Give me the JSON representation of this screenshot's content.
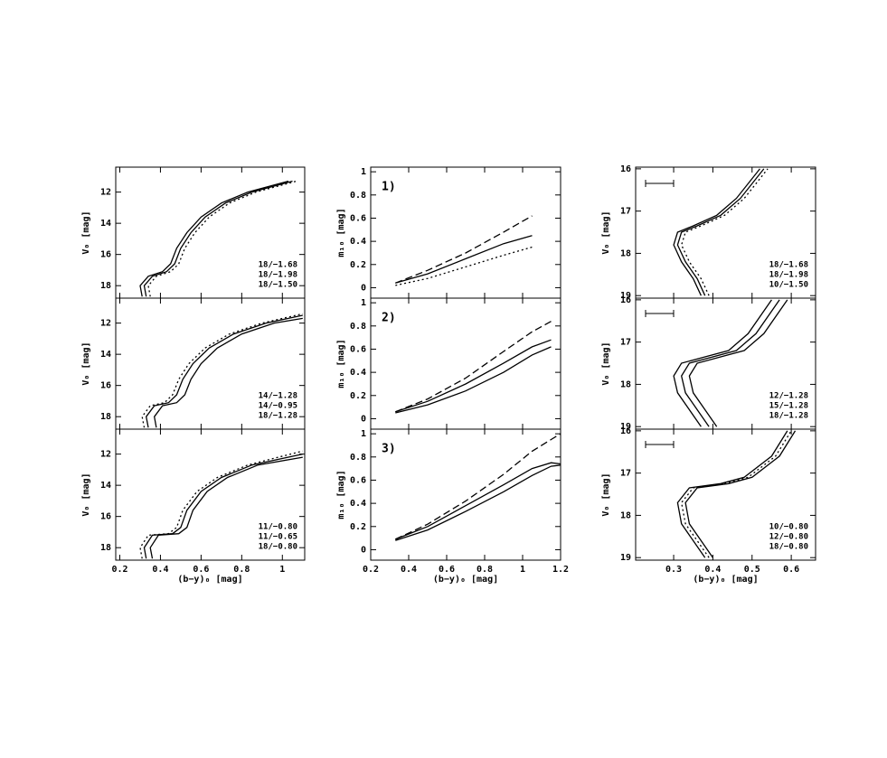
{
  "chart_data": [
    {
      "type": "line",
      "xlabel": "(b−y)₀ [mag]",
      "xlim": [
        0.18,
        1.11
      ],
      "xticks": [
        0.2,
        0.4,
        0.6,
        0.8,
        1
      ],
      "panels": [
        {
          "ylabel": "V₀ [mag]",
          "ylim": [
            18.8,
            10.4
          ],
          "yticks": [
            12,
            14,
            16,
            18
          ],
          "series": [
            {
              "name": "18/−1.68",
              "color": "#000000",
              "dash": "solid",
              "x": [
                0.33,
                0.32,
                0.36,
                0.43,
                0.47,
                0.5,
                0.55,
                0.62,
                0.72,
                0.85,
                1.05
              ],
              "values": [
                18.7,
                18.0,
                17.4,
                17.1,
                16.6,
                15.6,
                14.6,
                13.6,
                12.7,
                12.0,
                11.3
              ]
            },
            {
              "name": "18/−1.98",
              "color": "#000000",
              "dash": "solid",
              "x": [
                0.31,
                0.3,
                0.34,
                0.41,
                0.45,
                0.48,
                0.53,
                0.6,
                0.7,
                0.83,
                1.03
              ],
              "values": [
                18.7,
                18.0,
                17.4,
                17.1,
                16.6,
                15.6,
                14.6,
                13.6,
                12.7,
                12.0,
                11.3
              ]
            },
            {
              "name": "18/−1.50",
              "color": "#000000",
              "dash": "dotted",
              "x": [
                0.35,
                0.34,
                0.38,
                0.45,
                0.49,
                0.52,
                0.57,
                0.64,
                0.74,
                0.87,
                1.07
              ],
              "values": [
                18.7,
                18.0,
                17.4,
                17.1,
                16.6,
                15.6,
                14.6,
                13.6,
                12.7,
                12.0,
                11.3
              ]
            }
          ]
        },
        {
          "ylabel": "V₀ [mag]",
          "ylim": [
            18.8,
            10.4
          ],
          "yticks": [
            12,
            14,
            16,
            18
          ],
          "series": [
            {
              "name": "14/−1.28",
              "color": "#000000",
              "dash": "solid",
              "x": [
                0.34,
                0.33,
                0.37,
                0.44,
                0.48,
                0.51,
                0.56,
                0.64,
                0.76,
                0.92,
                1.1
              ],
              "values": [
                18.7,
                18.0,
                17.3,
                17.1,
                16.6,
                15.6,
                14.6,
                13.6,
                12.7,
                12.0,
                11.5
              ]
            },
            {
              "name": "14/−0.95",
              "color": "#000000",
              "dash": "solid",
              "x": [
                0.38,
                0.37,
                0.41,
                0.48,
                0.52,
                0.55,
                0.6,
                0.68,
                0.8,
                0.96,
                1.1
              ],
              "values": [
                18.7,
                18.0,
                17.3,
                17.1,
                16.6,
                15.6,
                14.6,
                13.6,
                12.7,
                12.0,
                11.7
              ]
            },
            {
              "name": "18/−1.28",
              "color": "#000000",
              "dash": "dotted",
              "x": [
                0.32,
                0.31,
                0.35,
                0.42,
                0.46,
                0.49,
                0.54,
                0.62,
                0.74,
                0.9,
                1.1
              ],
              "values": [
                18.7,
                18.0,
                17.3,
                17.1,
                16.6,
                15.6,
                14.6,
                13.6,
                12.7,
                12.0,
                11.4
              ]
            }
          ]
        },
        {
          "ylabel": "V₀ [mag]",
          "ylim": [
            18.8,
            10.4
          ],
          "yticks": [
            12,
            14,
            16,
            18
          ],
          "series": [
            {
              "name": "11/−0.80",
              "color": "#000000",
              "dash": "solid",
              "x": [
                0.33,
                0.32,
                0.36,
                0.46,
                0.5,
                0.53,
                0.6,
                0.7,
                0.85,
                1.1
              ],
              "values": [
                18.7,
                18.0,
                17.2,
                17.1,
                16.7,
                15.6,
                14.4,
                13.5,
                12.7,
                12.0
              ]
            },
            {
              "name": "11/−0.65",
              "color": "#000000",
              "dash": "solid",
              "x": [
                0.36,
                0.35,
                0.39,
                0.49,
                0.53,
                0.56,
                0.63,
                0.73,
                0.88,
                1.1
              ],
              "values": [
                18.7,
                18.0,
                17.2,
                17.1,
                16.7,
                15.6,
                14.4,
                13.5,
                12.7,
                12.2
              ]
            },
            {
              "name": "18/−0.80",
              "color": "#000000",
              "dash": "dotted",
              "x": [
                0.31,
                0.3,
                0.34,
                0.44,
                0.48,
                0.51,
                0.58,
                0.68,
                0.83,
                1.1
              ],
              "values": [
                18.7,
                18.0,
                17.2,
                17.1,
                16.7,
                15.6,
                14.4,
                13.5,
                12.7,
                11.8
              ]
            }
          ]
        }
      ]
    },
    {
      "type": "line",
      "xlabel": "(b−y)₀ [mag]",
      "xlim": [
        0.2,
        1.2
      ],
      "xticks": [
        0.2,
        0.4,
        0.6,
        0.8,
        1,
        1.2
      ],
      "panels": [
        {
          "tag": "1)",
          "ylabel": "m₁₀ [mag]",
          "ylim": [
            -0.09,
            1.04
          ],
          "yticks": [
            0,
            0.2,
            0.4,
            0.6,
            0.8,
            1
          ],
          "series": [
            {
              "color": "#000000",
              "dash": "solid",
              "x": [
                0.33,
                0.5,
                0.7,
                0.9,
                1.05
              ],
              "values": [
                0.04,
                0.12,
                0.25,
                0.38,
                0.45
              ]
            },
            {
              "color": "#000000",
              "dash": "dashed",
              "x": [
                0.33,
                0.5,
                0.7,
                0.9,
                1.05
              ],
              "values": [
                0.04,
                0.15,
                0.3,
                0.48,
                0.62
              ]
            },
            {
              "color": "#000000",
              "dash": "dotted",
              "x": [
                0.33,
                0.5,
                0.7,
                0.9,
                1.05
              ],
              "values": [
                0.02,
                0.08,
                0.18,
                0.28,
                0.35
              ]
            }
          ]
        },
        {
          "tag": "2)",
          "ylabel": "m₁₀ [mag]",
          "ylim": [
            -0.09,
            1.04
          ],
          "yticks": [
            0,
            0.2,
            0.4,
            0.6,
            0.8,
            1
          ],
          "series": [
            {
              "color": "#000000",
              "dash": "solid",
              "x": [
                0.33,
                0.5,
                0.7,
                0.9,
                1.05,
                1.15
              ],
              "values": [
                0.06,
                0.15,
                0.3,
                0.48,
                0.62,
                0.68
              ]
            },
            {
              "color": "#000000",
              "dash": "dashed",
              "x": [
                0.33,
                0.5,
                0.7,
                0.9,
                1.05,
                1.15
              ],
              "values": [
                0.06,
                0.17,
                0.35,
                0.58,
                0.75,
                0.84
              ]
            },
            {
              "color": "#000000",
              "dash": "solid",
              "x": [
                0.33,
                0.5,
                0.7,
                0.9,
                1.05,
                1.15
              ],
              "values": [
                0.05,
                0.12,
                0.24,
                0.4,
                0.55,
                0.62
              ]
            }
          ]
        },
        {
          "tag": "3)",
          "ylabel": "m₁₀ [mag]",
          "ylim": [
            -0.09,
            1.04
          ],
          "yticks": [
            0,
            0.2,
            0.4,
            0.6,
            0.8,
            1
          ],
          "series": [
            {
              "color": "#000000",
              "dash": "solid",
              "x": [
                0.33,
                0.5,
                0.7,
                0.9,
                1.05,
                1.15,
                1.2
              ],
              "values": [
                0.09,
                0.2,
                0.38,
                0.56,
                0.7,
                0.75,
                0.74
              ]
            },
            {
              "color": "#000000",
              "dash": "dashed",
              "x": [
                0.33,
                0.5,
                0.7,
                0.9,
                1.05,
                1.15,
                1.2
              ],
              "values": [
                0.09,
                0.22,
                0.42,
                0.65,
                0.85,
                0.95,
                1.0
              ]
            },
            {
              "color": "#000000",
              "dash": "solid",
              "x": [
                0.33,
                0.5,
                0.7,
                0.9,
                1.05,
                1.15,
                1.2
              ],
              "values": [
                0.08,
                0.17,
                0.33,
                0.5,
                0.64,
                0.72,
                0.73
              ]
            }
          ]
        }
      ]
    },
    {
      "type": "line",
      "xlabel": "(b−y)₀ [mag]",
      "xlim": [
        0.203,
        0.662
      ],
      "xticks": [
        0.3,
        0.4,
        0.5,
        0.6
      ],
      "panels": [
        {
          "ylabel": "V₀ [mag]",
          "ylim": [
            19.06,
            15.96
          ],
          "yticks": [
            16,
            17,
            18,
            19
          ],
          "series": [
            {
              "name": "18/−1.68",
              "color": "#000000",
              "dash": "solid",
              "x": [
                0.38,
                0.36,
                0.33,
                0.31,
                0.32,
                0.36,
                0.42,
                0.47,
                0.53
              ],
              "values": [
                19,
                18.6,
                18.2,
                17.8,
                17.5,
                17.35,
                17.1,
                16.7,
                16.0
              ]
            },
            {
              "name": "18/−1.98",
              "color": "#000000",
              "dash": "solid",
              "x": [
                0.37,
                0.35,
                0.32,
                0.3,
                0.31,
                0.35,
                0.41,
                0.46,
                0.52
              ],
              "values": [
                19,
                18.6,
                18.2,
                17.8,
                17.5,
                17.35,
                17.1,
                16.7,
                16.0
              ]
            },
            {
              "name": "10/−1.50",
              "color": "#000000",
              "dash": "dotted",
              "x": [
                0.39,
                0.37,
                0.34,
                0.32,
                0.33,
                0.37,
                0.43,
                0.48,
                0.54
              ],
              "values": [
                19,
                18.6,
                18.2,
                17.8,
                17.5,
                17.35,
                17.1,
                16.7,
                16.0
              ]
            }
          ]
        },
        {
          "ylabel": "V₀ [mag]",
          "ylim": [
            19.06,
            15.96
          ],
          "yticks": [
            16,
            17,
            18,
            19
          ],
          "series": [
            {
              "name": "12/−1.28",
              "color": "#000000",
              "dash": "solid",
              "x": [
                0.37,
                0.34,
                0.31,
                0.3,
                0.32,
                0.38,
                0.44,
                0.49,
                0.55
              ],
              "values": [
                19,
                18.6,
                18.2,
                17.8,
                17.5,
                17.35,
                17.2,
                16.8,
                16.0
              ]
            },
            {
              "name": "15/−1.28",
              "color": "#000000",
              "dash": "solid",
              "x": [
                0.39,
                0.36,
                0.33,
                0.32,
                0.34,
                0.4,
                0.46,
                0.51,
                0.57
              ],
              "values": [
                19,
                18.6,
                18.2,
                17.8,
                17.5,
                17.35,
                17.2,
                16.8,
                16.0
              ]
            },
            {
              "name": "18/−1.28",
              "color": "#000000",
              "dash": "solid",
              "x": [
                0.41,
                0.38,
                0.35,
                0.34,
                0.36,
                0.42,
                0.48,
                0.53,
                0.59
              ],
              "values": [
                19,
                18.6,
                18.2,
                17.8,
                17.5,
                17.35,
                17.2,
                16.8,
                16.0
              ]
            }
          ]
        },
        {
          "ylabel": "V₀ [mag]",
          "ylim": [
            19.06,
            15.96
          ],
          "yticks": [
            16,
            17,
            18,
            19
          ],
          "series": [
            {
              "name": "10/−0.80",
              "color": "#000000",
              "dash": "solid",
              "x": [
                0.38,
                0.35,
                0.32,
                0.31,
                0.34,
                0.42,
                0.48,
                0.55,
                0.59
              ],
              "values": [
                19,
                18.6,
                18.2,
                17.7,
                17.35,
                17.25,
                17.1,
                16.6,
                16.0
              ]
            },
            {
              "name": "12/−0.80",
              "color": "#000000",
              "dash": "solid",
              "x": [
                0.4,
                0.37,
                0.34,
                0.33,
                0.36,
                0.44,
                0.5,
                0.57,
                0.61
              ],
              "values": [
                19,
                18.6,
                18.2,
                17.7,
                17.35,
                17.25,
                17.1,
                16.6,
                16.0
              ]
            },
            {
              "name": "18/−0.80",
              "color": "#000000",
              "dash": "dotted",
              "x": [
                0.39,
                0.36,
                0.33,
                0.32,
                0.35,
                0.43,
                0.49,
                0.56,
                0.6
              ],
              "values": [
                19,
                18.6,
                18.2,
                17.7,
                17.35,
                17.25,
                17.1,
                16.6,
                16.0
              ]
            }
          ]
        }
      ]
    }
  ]
}
